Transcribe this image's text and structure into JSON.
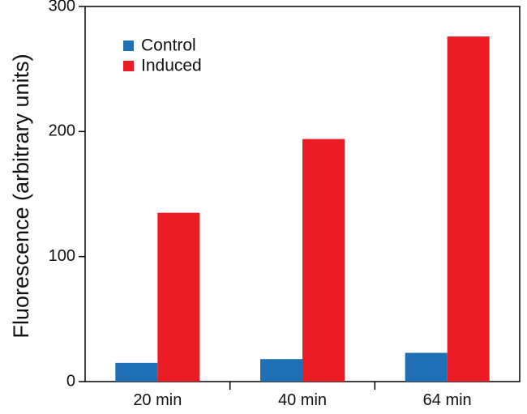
{
  "chart_data": {
    "type": "bar",
    "title": "",
    "xlabel": "",
    "ylabel": "Fluorescence (arbitrary units)",
    "categories": [
      "20 min",
      "40 min",
      "64 min"
    ],
    "series": [
      {
        "name": "Control",
        "color": "#1f6fb4",
        "values": [
          15,
          18,
          23
        ]
      },
      {
        "name": "Induced",
        "color": "#ec1c24",
        "values": [
          135,
          194,
          276
        ]
      }
    ],
    "ylim": [
      0,
      300
    ],
    "yticks": [
      0,
      100,
      200,
      300
    ],
    "grid": false,
    "legend_position": "top-left"
  }
}
